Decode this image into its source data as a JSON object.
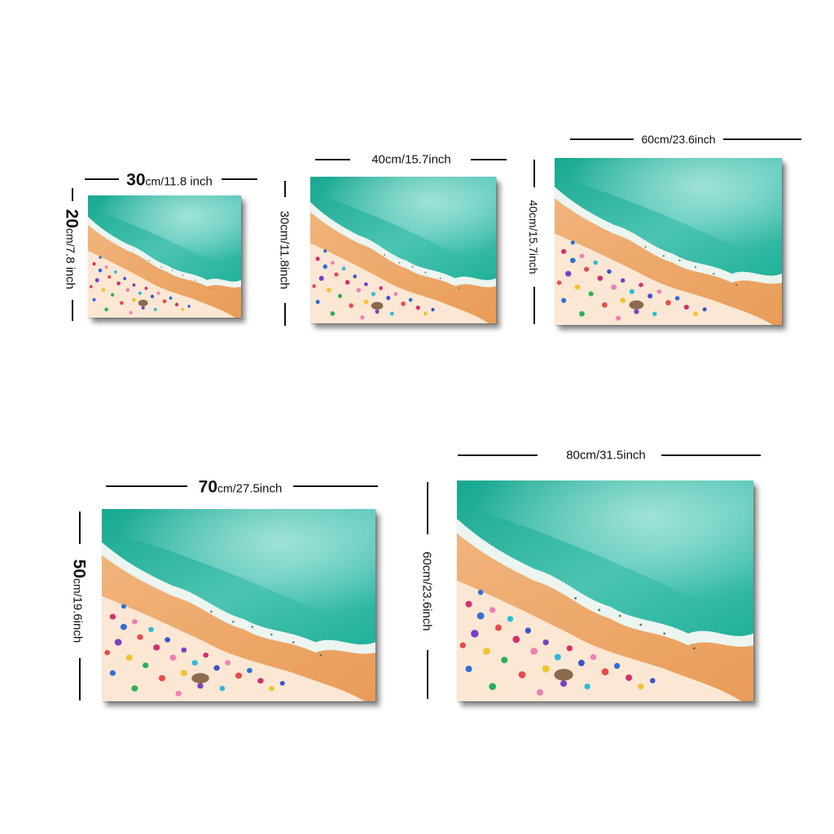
{
  "colors": {
    "ocean_deep": "#1fae95",
    "ocean_light": "#6fd2c7",
    "foam": "#e9f5f1",
    "sand_wet": "#eeab6f",
    "sand_dry": "#fbe7d3"
  },
  "sizes": [
    {
      "id": "size-30x20",
      "width_label": {
        "number": "30",
        "unit": "cm/",
        "inch": "11.8 inch"
      },
      "height_label": {
        "number": "20",
        "unit": "cm/",
        "inch": "7.8 inch"
      }
    },
    {
      "id": "size-40x30",
      "width_label": {
        "text": "40cm/15.7inch"
      },
      "height_label": {
        "text": "30cm/11.8inch"
      }
    },
    {
      "id": "size-60x40",
      "width_label": {
        "text": "60cm/23.6inch"
      },
      "height_label": {
        "text": "40cm/15.7inch"
      }
    },
    {
      "id": "size-70x50",
      "width_label": {
        "number": "70",
        "unit": "cm/",
        "inch": "27.5inch"
      },
      "height_label": {
        "number": "50",
        "unit": "cm/",
        "inch": "19.6inch"
      }
    },
    {
      "id": "size-80x60",
      "width_label": {
        "text": "80cm/31.5inch"
      },
      "height_label": {
        "text": "60cm/23.6inch"
      }
    }
  ]
}
